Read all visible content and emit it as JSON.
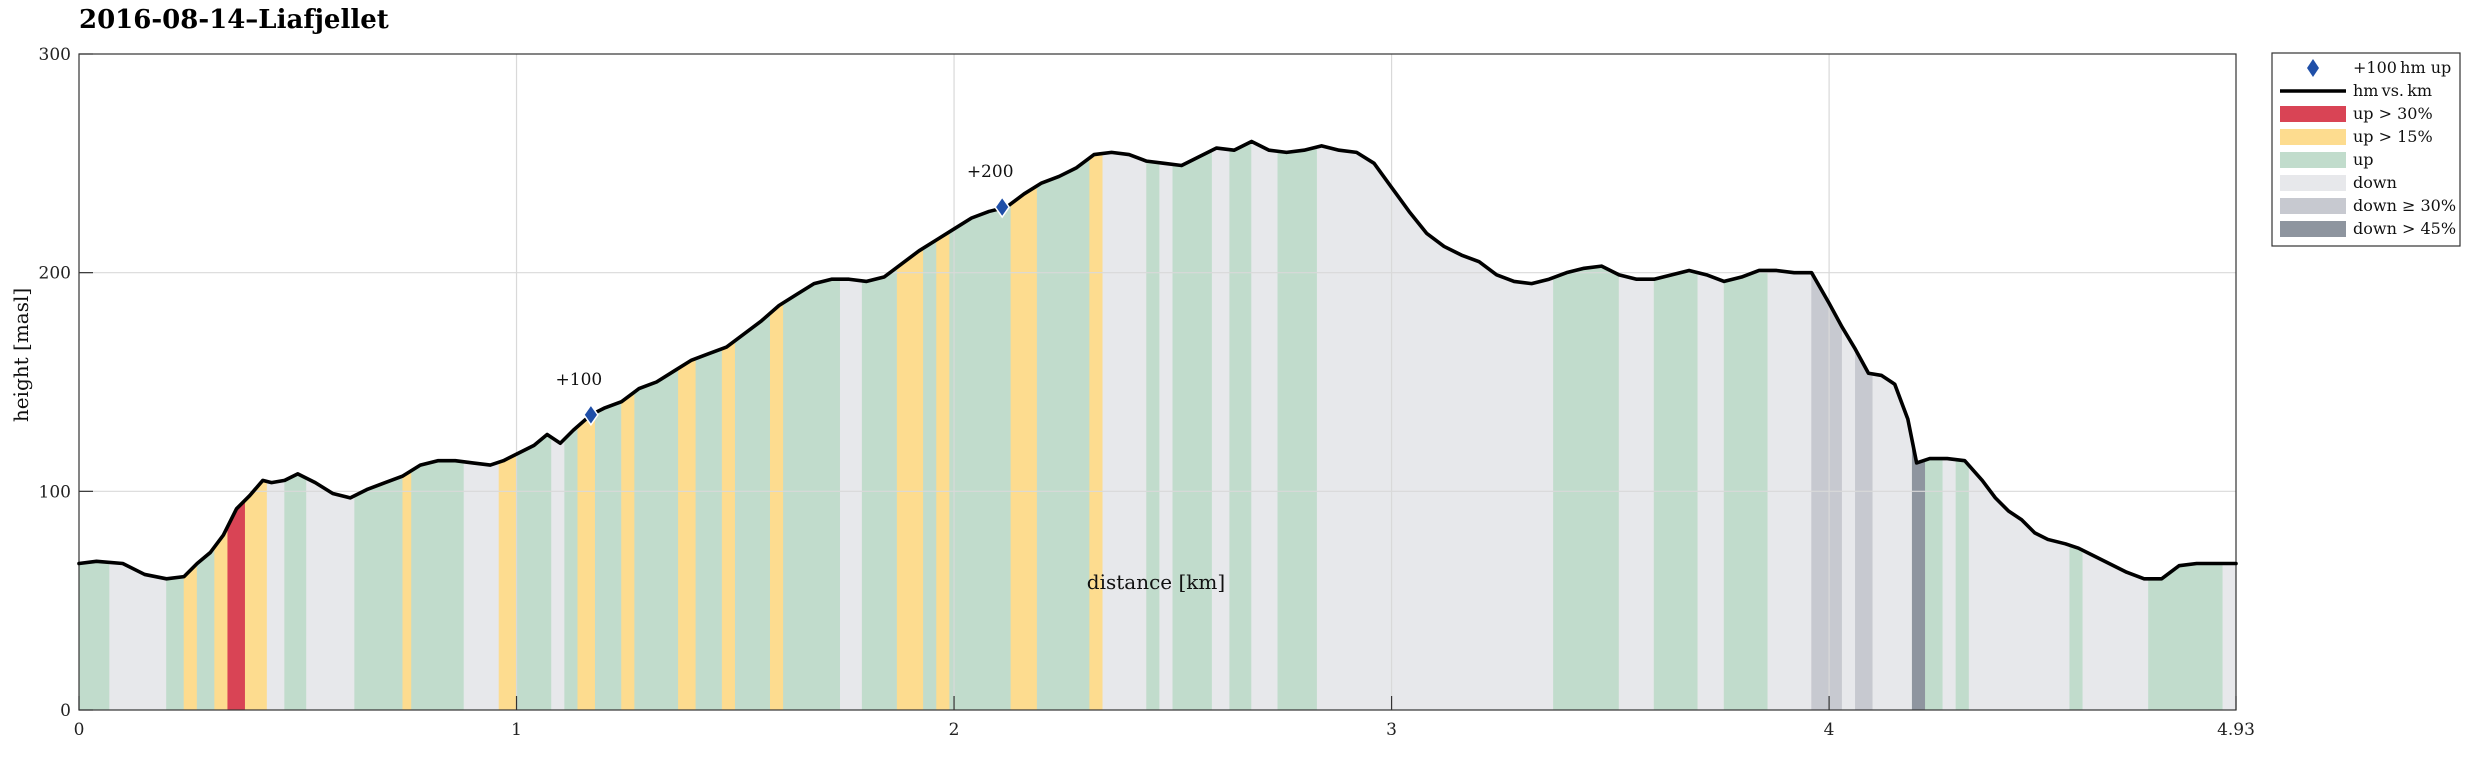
{
  "chart_data": {
    "type": "line",
    "title": "2016-08-14–Liafjellet",
    "xlabel": "distance [km]",
    "ylabel": "height [masl]",
    "xlim": [
      0,
      4.93
    ],
    "ylim": [
      0,
      300
    ],
    "x_ticks": [
      0,
      1,
      2,
      3,
      4,
      4.93
    ],
    "x_tick_labels": [
      "0",
      "1",
      "2",
      "3",
      "4",
      "4.93"
    ],
    "y_ticks": [
      0,
      100,
      200,
      300
    ],
    "y_tick_labels": [
      "0",
      "100",
      "200",
      "300"
    ],
    "grid": true,
    "legend_position": "outside-right-top",
    "series": [
      {
        "name": "hm vs. km",
        "color": "#000000",
        "x": [
          0,
          0.04,
          0.1,
          0.15,
          0.2,
          0.24,
          0.27,
          0.3,
          0.33,
          0.36,
          0.39,
          0.42,
          0.44,
          0.47,
          0.5,
          0.54,
          0.58,
          0.62,
          0.66,
          0.7,
          0.74,
          0.78,
          0.82,
          0.86,
          0.9,
          0.94,
          0.97,
          1.0,
          1.04,
          1.07,
          1.1,
          1.13,
          1.17,
          1.2,
          1.24,
          1.28,
          1.32,
          1.36,
          1.4,
          1.44,
          1.48,
          1.52,
          1.56,
          1.6,
          1.64,
          1.68,
          1.72,
          1.76,
          1.8,
          1.84,
          1.88,
          1.92,
          1.96,
          2.0,
          2.04,
          2.08,
          2.12,
          2.16,
          2.2,
          2.24,
          2.28,
          2.32,
          2.36,
          2.4,
          2.44,
          2.48,
          2.52,
          2.56,
          2.6,
          2.64,
          2.68,
          2.72,
          2.76,
          2.8,
          2.84,
          2.88,
          2.92,
          2.96,
          3.0,
          3.04,
          3.08,
          3.12,
          3.16,
          3.2,
          3.24,
          3.28,
          3.32,
          3.36,
          3.4,
          3.44,
          3.48,
          3.52,
          3.56,
          3.6,
          3.64,
          3.68,
          3.72,
          3.76,
          3.8,
          3.84,
          3.88,
          3.92,
          3.96,
          4.0,
          4.03,
          4.06,
          4.09,
          4.12,
          4.15,
          4.18,
          4.2,
          4.23,
          4.27,
          4.31,
          4.35,
          4.38,
          4.41,
          4.44,
          4.47,
          4.5,
          4.54,
          4.57,
          4.6,
          4.64,
          4.68,
          4.72,
          4.76,
          4.8,
          4.84,
          4.88,
          4.93
        ],
        "y": [
          67,
          68,
          67,
          62,
          60,
          61,
          67,
          72,
          80,
          92,
          98,
          105,
          104,
          105,
          108,
          104,
          99,
          97,
          101,
          104,
          107,
          112,
          114,
          114,
          113,
          112,
          114,
          117,
          121,
          126,
          122,
          128,
          135,
          138,
          141,
          147,
          150,
          155,
          160,
          163,
          166,
          172,
          178,
          185,
          190,
          195,
          197,
          197,
          196,
          198,
          204,
          210,
          215,
          220,
          225,
          228,
          230,
          236,
          241,
          244,
          248,
          254,
          255,
          254,
          251,
          250,
          249,
          253,
          257,
          256,
          260,
          256,
          255,
          256,
          258,
          256,
          255,
          250,
          239,
          228,
          218,
          212,
          208,
          205,
          199,
          196,
          195,
          197,
          200,
          202,
          203,
          199,
          197,
          197,
          199,
          201,
          199,
          196,
          198,
          201,
          201,
          200,
          200,
          186,
          175,
          165,
          154,
          153,
          149,
          133,
          113,
          115,
          115,
          114,
          105,
          97,
          91,
          87,
          81,
          78,
          76,
          74,
          71,
          67,
          63,
          60,
          60,
          66,
          67,
          67,
          67
        ]
      }
    ],
    "markers": {
      "name": "+100 hm up",
      "color": "#1f4fa8",
      "points": [
        {
          "x": 1.17,
          "y": 135,
          "label": "+100"
        },
        {
          "x": 2.11,
          "y": 230,
          "label": "+200"
        }
      ]
    },
    "segments": [
      {
        "x0": 0.0,
        "x1": 0.07,
        "cls": "up"
      },
      {
        "x0": 0.07,
        "x1": 0.2,
        "cls": "down"
      },
      {
        "x0": 0.2,
        "x1": 0.24,
        "cls": "up"
      },
      {
        "x0": 0.24,
        "x1": 0.27,
        "cls": "up15"
      },
      {
        "x0": 0.27,
        "x1": 0.31,
        "cls": "up"
      },
      {
        "x0": 0.31,
        "x1": 0.34,
        "cls": "up15"
      },
      {
        "x0": 0.34,
        "x1": 0.38,
        "cls": "up30"
      },
      {
        "x0": 0.38,
        "x1": 0.43,
        "cls": "up15"
      },
      {
        "x0": 0.43,
        "x1": 0.47,
        "cls": "down"
      },
      {
        "x0": 0.47,
        "x1": 0.52,
        "cls": "up"
      },
      {
        "x0": 0.52,
        "x1": 0.63,
        "cls": "down"
      },
      {
        "x0": 0.63,
        "x1": 0.74,
        "cls": "up"
      },
      {
        "x0": 0.74,
        "x1": 0.76,
        "cls": "up15"
      },
      {
        "x0": 0.76,
        "x1": 0.88,
        "cls": "up"
      },
      {
        "x0": 0.88,
        "x1": 0.96,
        "cls": "down"
      },
      {
        "x0": 0.96,
        "x1": 1.0,
        "cls": "up15"
      },
      {
        "x0": 1.0,
        "x1": 1.08,
        "cls": "up"
      },
      {
        "x0": 1.08,
        "x1": 1.11,
        "cls": "down"
      },
      {
        "x0": 1.11,
        "x1": 1.14,
        "cls": "up"
      },
      {
        "x0": 1.14,
        "x1": 1.18,
        "cls": "up15"
      },
      {
        "x0": 1.18,
        "x1": 1.24,
        "cls": "up"
      },
      {
        "x0": 1.24,
        "x1": 1.27,
        "cls": "up15"
      },
      {
        "x0": 1.27,
        "x1": 1.37,
        "cls": "up"
      },
      {
        "x0": 1.37,
        "x1": 1.41,
        "cls": "up15"
      },
      {
        "x0": 1.41,
        "x1": 1.47,
        "cls": "up"
      },
      {
        "x0": 1.47,
        "x1": 1.5,
        "cls": "up15"
      },
      {
        "x0": 1.5,
        "x1": 1.58,
        "cls": "up"
      },
      {
        "x0": 1.58,
        "x1": 1.61,
        "cls": "up15"
      },
      {
        "x0": 1.61,
        "x1": 1.74,
        "cls": "up"
      },
      {
        "x0": 1.74,
        "x1": 1.79,
        "cls": "down"
      },
      {
        "x0": 1.79,
        "x1": 1.87,
        "cls": "up"
      },
      {
        "x0": 1.87,
        "x1": 1.93,
        "cls": "up15"
      },
      {
        "x0": 1.93,
        "x1": 1.96,
        "cls": "up"
      },
      {
        "x0": 1.96,
        "x1": 1.99,
        "cls": "up15"
      },
      {
        "x0": 1.99,
        "x1": 2.13,
        "cls": "up"
      },
      {
        "x0": 2.13,
        "x1": 2.19,
        "cls": "up15"
      },
      {
        "x0": 2.19,
        "x1": 2.31,
        "cls": "up"
      },
      {
        "x0": 2.31,
        "x1": 2.34,
        "cls": "up15"
      },
      {
        "x0": 2.34,
        "x1": 2.44,
        "cls": "down"
      },
      {
        "x0": 2.44,
        "x1": 2.47,
        "cls": "up"
      },
      {
        "x0": 2.47,
        "x1": 2.5,
        "cls": "down"
      },
      {
        "x0": 2.5,
        "x1": 2.59,
        "cls": "up"
      },
      {
        "x0": 2.59,
        "x1": 2.63,
        "cls": "down"
      },
      {
        "x0": 2.63,
        "x1": 2.68,
        "cls": "up"
      },
      {
        "x0": 2.68,
        "x1": 2.74,
        "cls": "down"
      },
      {
        "x0": 2.74,
        "x1": 2.83,
        "cls": "up"
      },
      {
        "x0": 2.83,
        "x1": 3.37,
        "cls": "down"
      },
      {
        "x0": 3.37,
        "x1": 3.52,
        "cls": "up"
      },
      {
        "x0": 3.52,
        "x1": 3.6,
        "cls": "down"
      },
      {
        "x0": 3.6,
        "x1": 3.7,
        "cls": "up"
      },
      {
        "x0": 3.7,
        "x1": 3.76,
        "cls": "down"
      },
      {
        "x0": 3.76,
        "x1": 3.86,
        "cls": "up"
      },
      {
        "x0": 3.86,
        "x1": 3.96,
        "cls": "down"
      },
      {
        "x0": 3.96,
        "x1": 4.03,
        "cls": "down30"
      },
      {
        "x0": 4.03,
        "x1": 4.06,
        "cls": "down"
      },
      {
        "x0": 4.06,
        "x1": 4.1,
        "cls": "down30"
      },
      {
        "x0": 4.1,
        "x1": 4.19,
        "cls": "down"
      },
      {
        "x0": 4.19,
        "x1": 4.22,
        "cls": "down45"
      },
      {
        "x0": 4.22,
        "x1": 4.26,
        "cls": "up"
      },
      {
        "x0": 4.26,
        "x1": 4.29,
        "cls": "down"
      },
      {
        "x0": 4.29,
        "x1": 4.32,
        "cls": "up"
      },
      {
        "x0": 4.32,
        "x1": 4.55,
        "cls": "down"
      },
      {
        "x0": 4.55,
        "x1": 4.58,
        "cls": "up"
      },
      {
        "x0": 4.58,
        "x1": 4.73,
        "cls": "down"
      },
      {
        "x0": 4.73,
        "x1": 4.9,
        "cls": "up"
      },
      {
        "x0": 4.9,
        "x1": 4.93,
        "cls": "down"
      }
    ],
    "legend": [
      {
        "key": "marker",
        "label": "+100 hm up",
        "swatch": "diamond",
        "color": "#1f4fa8"
      },
      {
        "key": "line",
        "label": "hm vs. km",
        "swatch": "line",
        "color": "#000000"
      },
      {
        "key": "up30",
        "label": "up > 30%",
        "swatch": "patch",
        "color": "#d94455"
      },
      {
        "key": "up15",
        "label": "up > 15%",
        "swatch": "patch",
        "color": "#fddc8f"
      },
      {
        "key": "up",
        "label": "up",
        "swatch": "patch",
        "color": "#c1dccc"
      },
      {
        "key": "down",
        "label": "down",
        "swatch": "patch",
        "color": "#e7e8eb"
      },
      {
        "key": "down30",
        "label": "down ≥ 30%",
        "swatch": "patch",
        "color": "#c7c9d0"
      },
      {
        "key": "down45",
        "label": "down > 45%",
        "swatch": "patch",
        "color": "#8e959f"
      }
    ]
  }
}
